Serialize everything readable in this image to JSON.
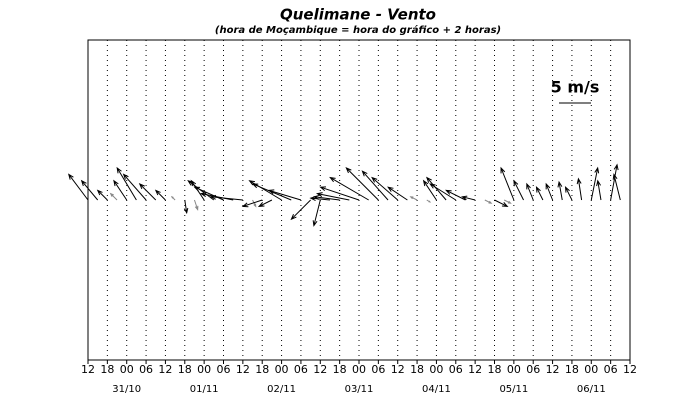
{
  "chart_data": {
    "type": "quiver",
    "title": "Quelimane - Vento",
    "subtitle": "(hora de Moçambique = hora do gráfico + 2 horas)",
    "xlim": [
      0,
      168
    ],
    "ylim": [
      -25,
      25
    ],
    "xticks": [
      {
        "value": 0,
        "label": "12"
      },
      {
        "value": 6,
        "label": "18"
      },
      {
        "value": 12,
        "label": "00"
      },
      {
        "value": 18,
        "label": "06"
      },
      {
        "value": 24,
        "label": "12"
      },
      {
        "value": 30,
        "label": "18"
      },
      {
        "value": 36,
        "label": "00"
      },
      {
        "value": 42,
        "label": "06"
      },
      {
        "value": 48,
        "label": "12"
      },
      {
        "value": 54,
        "label": "18"
      },
      {
        "value": 60,
        "label": "00"
      },
      {
        "value": 66,
        "label": "06"
      },
      {
        "value": 72,
        "label": "12"
      },
      {
        "value": 78,
        "label": "18"
      },
      {
        "value": 84,
        "label": "00"
      },
      {
        "value": 90,
        "label": "06"
      },
      {
        "value": 96,
        "label": "12"
      },
      {
        "value": 102,
        "label": "18"
      },
      {
        "value": 108,
        "label": "00"
      },
      {
        "value": 114,
        "label": "06"
      },
      {
        "value": 120,
        "label": "12"
      },
      {
        "value": 126,
        "label": "18"
      },
      {
        "value": 132,
        "label": "00"
      },
      {
        "value": 138,
        "label": "06"
      },
      {
        "value": 144,
        "label": "12"
      },
      {
        "value": 150,
        "label": "18"
      },
      {
        "value": 156,
        "label": "00"
      },
      {
        "value": 162,
        "label": "06"
      },
      {
        "value": 168,
        "label": "12"
      }
    ],
    "date_labels": [
      {
        "value": 12,
        "label": "31/10"
      },
      {
        "value": 36,
        "label": "01/11"
      },
      {
        "value": 60,
        "label": "02/11"
      },
      {
        "value": 84,
        "label": "03/11"
      },
      {
        "value": 108,
        "label": "04/11"
      },
      {
        "value": 132,
        "label": "05/11"
      },
      {
        "value": 156,
        "label": "06/11"
      }
    ],
    "reference": {
      "value": 5,
      "label": "5 m/s"
    },
    "grid": true,
    "color": "#000000",
    "x": [
      0,
      3,
      6,
      9,
      12,
      15,
      18,
      21,
      24,
      27,
      30,
      33,
      36,
      39,
      42,
      45,
      48,
      51,
      54,
      57,
      60,
      63,
      66,
      69,
      72,
      75,
      78,
      81,
      84,
      87,
      90,
      93,
      96,
      99,
      102,
      105,
      108,
      111,
      114,
      117,
      120,
      123,
      126,
      129,
      132,
      135,
      138,
      141,
      144,
      147,
      150,
      153,
      156,
      159,
      162,
      165,
      168
    ],
    "u": [
      -3,
      -2.5,
      -1.5,
      -1,
      -2,
      -3,
      -3.5,
      -2.5,
      -1.5,
      -0.5,
      0.3,
      0.5,
      -2,
      -4,
      -4.5,
      -5,
      -5,
      0.5,
      -3,
      -2,
      -5,
      -6,
      -5,
      -3,
      -1,
      -3,
      -4,
      -5,
      -6,
      -6,
      -5,
      -4,
      -4,
      -3,
      -1,
      0.5,
      -2,
      -3,
      -4,
      -3,
      -2,
      1,
      2,
      1,
      -2,
      -1.5,
      -1,
      -1,
      -1,
      -0.5,
      -1,
      -0.5,
      1,
      -0.5,
      1,
      -1,
      0
    ],
    "v": [
      4,
      3,
      1.5,
      1,
      3,
      5,
      4,
      2.5,
      1.5,
      0.5,
      -2,
      -1.5,
      3,
      3,
      2,
      1,
      0.5,
      -1,
      -1,
      -1,
      3,
      2.5,
      1.5,
      -3,
      -4,
      0.3,
      0.5,
      1,
      2,
      3.5,
      5,
      4.5,
      3.5,
      2,
      0.5,
      -0.3,
      3,
      3.5,
      2.5,
      1.5,
      0.5,
      -0.5,
      -1,
      -0.5,
      5,
      3,
      2.5,
      2,
      2.5,
      2.8,
      2,
      3.3,
      5,
      3,
      5.5,
      4,
      0
    ]
  }
}
